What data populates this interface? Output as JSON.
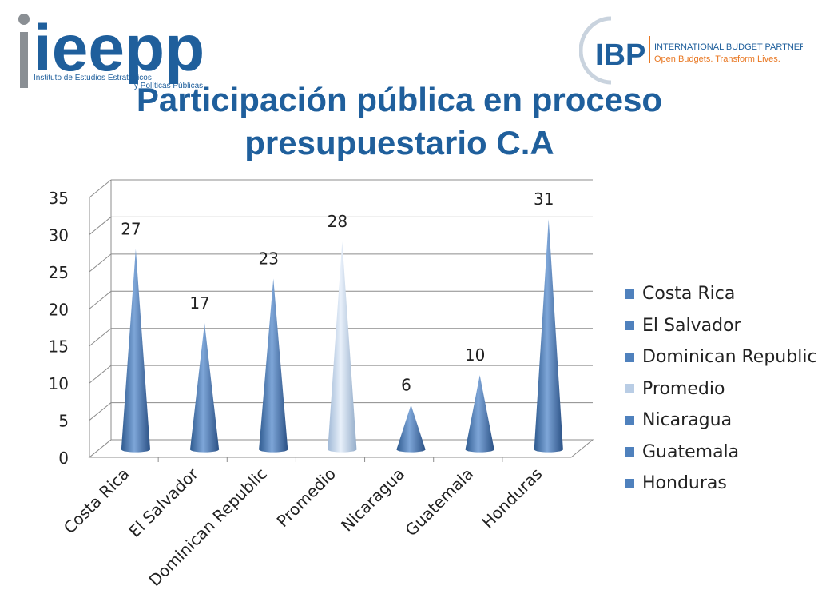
{
  "header": {
    "title_line1": "Participación pública en proceso",
    "title_line2": "presupuestario C.A",
    "logo_left": {
      "name": "ieepp",
      "subtitle_line1": "Instituto de Estudios Estratégicos",
      "subtitle_line2": "y Políticas Públicas"
    },
    "logo_right": {
      "abbr": "IBP",
      "name": "INTERNATIONAL BUDGET PARTNERSHIP",
      "tagline": "Open Budgets. Transform Lives."
    }
  },
  "colors": {
    "title": "#1f5f9c",
    "bar": "#4f81bd",
    "bar_highlight": "#b9cde5",
    "logo_grey": "#8a8f94",
    "logo_blue": "#1f5f9c",
    "logo_orange": "#e87722"
  },
  "chart_data": {
    "type": "bar",
    "shape": "cone",
    "categories": [
      "Costa Rica",
      "El Salvador",
      "Dominican Republic",
      "Promedio",
      "Nicaragua",
      "Guatemala",
      "Honduras"
    ],
    "values": [
      27,
      17,
      23,
      28,
      6,
      10,
      31
    ],
    "ylim": [
      0,
      35
    ],
    "yticks": [
      0,
      5,
      10,
      15,
      20,
      25,
      30,
      35
    ],
    "grid": true,
    "legend_position": "right",
    "legend_entries": [
      "Costa Rica",
      "El Salvador",
      "Dominican Republic",
      "Promedio",
      "Nicaragua",
      "Guatemala",
      "Honduras"
    ],
    "highlight_category": "Promedio"
  }
}
